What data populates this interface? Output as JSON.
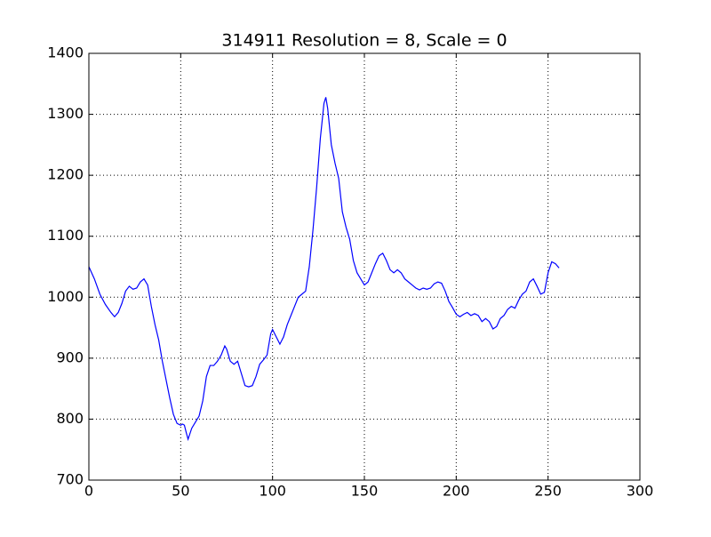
{
  "chart_data": {
    "type": "line",
    "title": "314911 Resolution = 8, Scale = 0",
    "x": [
      0,
      3,
      6,
      9,
      12,
      14,
      16,
      18,
      20,
      22,
      24,
      26,
      28,
      30,
      32,
      34,
      36,
      38,
      40,
      42,
      44,
      46,
      48,
      50,
      51,
      52,
      53,
      54,
      56,
      58,
      60,
      62,
      64,
      66,
      68,
      70,
      72,
      74,
      75,
      77,
      79,
      81,
      83,
      85,
      87,
      89,
      91,
      93,
      95,
      97,
      99,
      100,
      102,
      104,
      106,
      108,
      110,
      112,
      114,
      116,
      118,
      120,
      122,
      124,
      126,
      128,
      129,
      130,
      132,
      134,
      136,
      138,
      140,
      142,
      144,
      146,
      148,
      150,
      152,
      154,
      156,
      158,
      160,
      162,
      164,
      166,
      168,
      170,
      172,
      174,
      176,
      178,
      180,
      182,
      184,
      186,
      188,
      190,
      192,
      194,
      196,
      198,
      200,
      202,
      204,
      206,
      208,
      210,
      212,
      214,
      216,
      218,
      220,
      222,
      224,
      226,
      228,
      230,
      232,
      234,
      236,
      238,
      240,
      242,
      244,
      246,
      248,
      250,
      252,
      254,
      256
    ],
    "series": [
      {
        "name": "series",
        "color": "#0000ff",
        "values": [
          1050,
          1030,
          1005,
          988,
          975,
          968,
          975,
          990,
          1010,
          1018,
          1013,
          1015,
          1025,
          1030,
          1020,
          985,
          955,
          930,
          895,
          865,
          835,
          808,
          793,
          790,
          792,
          790,
          778,
          767,
          785,
          795,
          805,
          830,
          870,
          888,
          888,
          895,
          905,
          920,
          915,
          895,
          890,
          895,
          875,
          855,
          853,
          855,
          870,
          890,
          897,
          905,
          940,
          947,
          935,
          923,
          935,
          955,
          970,
          985,
          1000,
          1005,
          1010,
          1050,
          1110,
          1180,
          1260,
          1318,
          1328,
          1310,
          1250,
          1220,
          1195,
          1140,
          1115,
          1095,
          1060,
          1040,
          1030,
          1020,
          1025,
          1040,
          1055,
          1068,
          1072,
          1060,
          1045,
          1040,
          1045,
          1040,
          1030,
          1025,
          1020,
          1015,
          1012,
          1015,
          1013,
          1015,
          1022,
          1025,
          1023,
          1010,
          993,
          983,
          972,
          968,
          972,
          975,
          970,
          973,
          970,
          960,
          965,
          960,
          948,
          952,
          965,
          970,
          980,
          985,
          982,
          995,
          1005,
          1010,
          1025,
          1030,
          1018,
          1005,
          1008,
          1040,
          1058,
          1055,
          1048
        ]
      }
    ],
    "xlim": [
      0,
      300
    ],
    "xticks": [
      0,
      50,
      100,
      150,
      200,
      250,
      300
    ],
    "ylim": [
      700,
      1400
    ],
    "yticks": [
      700,
      800,
      900,
      1000,
      1100,
      1200,
      1300,
      1400
    ],
    "grid": true
  }
}
